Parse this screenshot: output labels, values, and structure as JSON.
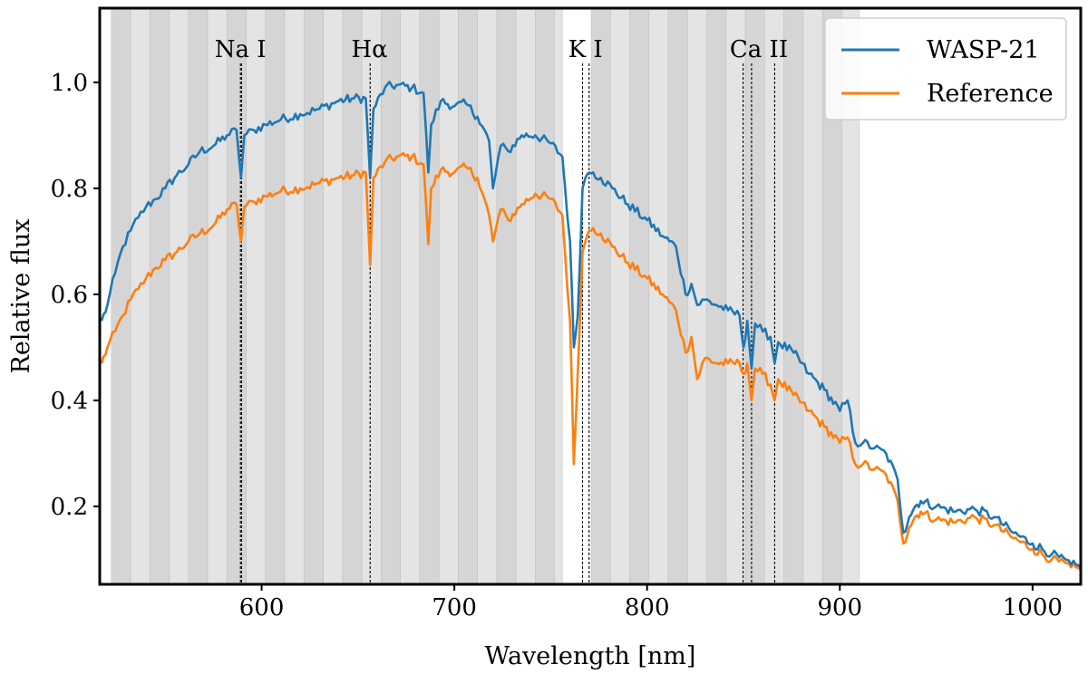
{
  "chart_data": {
    "type": "line",
    "title": "",
    "xlabel": "Wavelength [nm]",
    "ylabel": "Relative flux",
    "xlim": [
      516,
      1025
    ],
    "ylim": [
      0.053,
      1.14
    ],
    "xticks": [
      600,
      700,
      800,
      900,
      1000
    ],
    "yticks": [
      0.2,
      0.4,
      0.6,
      0.8,
      1.0
    ],
    "xtick_labels": [
      "600",
      "700",
      "800",
      "900",
      "1000"
    ],
    "ytick_labels": [
      "0.2",
      "0.4",
      "0.6",
      "0.8",
      "1.0"
    ],
    "legend_position": "top-right",
    "colors": {
      "wasp": "#1f77b4",
      "reference": "#ff7f0e",
      "band_dark": "#d5d5d5",
      "band_light": "#e4e4e4",
      "band_edge": "#c2c2c2"
    },
    "bin_regions": [
      {
        "start": 522,
        "end": 756,
        "bin_width": 10
      },
      {
        "start": 771,
        "end": 910,
        "bin_width": 10
      }
    ],
    "lines": [
      {
        "label": "Na I",
        "positions": [
          589.0,
          589.6
        ],
        "label_x": 589
      },
      {
        "label": "Hα",
        "positions": [
          656.3
        ],
        "label_x": 656
      },
      {
        "label": "K I",
        "positions": [
          766.5,
          769.9
        ],
        "label_x": 768
      },
      {
        "label": "Ca II",
        "positions": [
          849.8,
          854.2,
          866.2
        ],
        "label_x": 858
      }
    ],
    "series": [
      {
        "name": "WASP-21",
        "x": [
          517,
          520,
          524,
          528,
          532,
          536,
          540,
          545,
          550,
          556,
          562,
          568,
          575,
          582,
          587,
          589.3,
          591,
          596,
          602,
          610,
          620,
          630,
          640,
          648,
          654,
          656.3,
          658,
          664,
          670,
          678,
          684,
          686.5,
          688,
          693,
          700,
          706,
          712,
          718,
          720,
          724,
          728,
          735,
          742,
          750,
          756,
          760,
          762,
          764,
          766.5,
          768,
          770,
          772,
          776,
          782,
          790,
          800,
          808,
          815,
          820,
          823,
          826,
          830,
          836,
          842,
          848,
          850,
          852,
          854.2,
          856,
          860,
          864,
          866.2,
          868,
          876,
          884,
          892,
          900,
          904,
          908,
          912,
          918,
          924,
          930,
          933,
          936,
          939,
          942,
          950,
          960,
          970,
          980,
          990,
          1000,
          1010,
          1020,
          1025
        ],
        "values": [
          0.55,
          0.58,
          0.64,
          0.69,
          0.72,
          0.745,
          0.765,
          0.78,
          0.8,
          0.825,
          0.845,
          0.87,
          0.88,
          0.9,
          0.91,
          0.82,
          0.9,
          0.91,
          0.92,
          0.93,
          0.94,
          0.95,
          0.965,
          0.97,
          0.97,
          0.82,
          0.95,
          0.99,
          0.995,
          0.99,
          0.98,
          0.83,
          0.92,
          0.965,
          0.955,
          0.96,
          0.935,
          0.89,
          0.8,
          0.88,
          0.87,
          0.9,
          0.9,
          0.885,
          0.86,
          0.7,
          0.5,
          0.56,
          0.8,
          0.82,
          0.83,
          0.83,
          0.82,
          0.8,
          0.77,
          0.74,
          0.71,
          0.69,
          0.6,
          0.62,
          0.58,
          0.59,
          0.58,
          0.57,
          0.56,
          0.5,
          0.55,
          0.46,
          0.545,
          0.53,
          0.52,
          0.47,
          0.51,
          0.49,
          0.45,
          0.42,
          0.38,
          0.4,
          0.32,
          0.32,
          0.31,
          0.3,
          0.25,
          0.15,
          0.18,
          0.2,
          0.21,
          0.2,
          0.19,
          0.195,
          0.18,
          0.15,
          0.13,
          0.11,
          0.09,
          0.085
        ]
      },
      {
        "name": "Reference",
        "x": [
          517,
          520,
          524,
          528,
          532,
          536,
          540,
          545,
          550,
          556,
          562,
          568,
          575,
          582,
          587,
          589.3,
          591,
          596,
          602,
          610,
          620,
          630,
          640,
          648,
          654,
          656.3,
          658,
          664,
          670,
          678,
          684,
          686.5,
          688,
          693,
          700,
          706,
          712,
          718,
          720,
          724,
          728,
          735,
          742,
          750,
          756,
          760,
          762,
          764,
          766.5,
          768,
          770,
          772,
          776,
          782,
          790,
          800,
          808,
          815,
          820,
          823,
          826,
          830,
          836,
          842,
          848,
          850,
          852,
          854.2,
          856,
          860,
          864,
          866.2,
          868,
          876,
          884,
          892,
          900,
          904,
          908,
          912,
          918,
          924,
          930,
          933,
          936,
          939,
          942,
          950,
          960,
          970,
          980,
          990,
          1000,
          1010,
          1020,
          1025
        ],
        "values": [
          0.47,
          0.5,
          0.53,
          0.56,
          0.59,
          0.61,
          0.63,
          0.65,
          0.665,
          0.68,
          0.7,
          0.715,
          0.73,
          0.76,
          0.77,
          0.7,
          0.765,
          0.775,
          0.785,
          0.795,
          0.8,
          0.81,
          0.82,
          0.825,
          0.83,
          0.655,
          0.82,
          0.85,
          0.86,
          0.86,
          0.845,
          0.695,
          0.8,
          0.835,
          0.83,
          0.84,
          0.82,
          0.75,
          0.7,
          0.76,
          0.74,
          0.77,
          0.79,
          0.78,
          0.75,
          0.55,
          0.28,
          0.45,
          0.68,
          0.7,
          0.72,
          0.725,
          0.715,
          0.69,
          0.66,
          0.63,
          0.6,
          0.57,
          0.49,
          0.52,
          0.44,
          0.48,
          0.47,
          0.47,
          0.47,
          0.45,
          0.47,
          0.4,
          0.46,
          0.45,
          0.43,
          0.4,
          0.44,
          0.41,
          0.38,
          0.35,
          0.32,
          0.33,
          0.28,
          0.28,
          0.27,
          0.26,
          0.21,
          0.13,
          0.16,
          0.18,
          0.19,
          0.175,
          0.17,
          0.18,
          0.165,
          0.14,
          0.12,
          0.1,
          0.085,
          0.08
        ]
      }
    ]
  }
}
